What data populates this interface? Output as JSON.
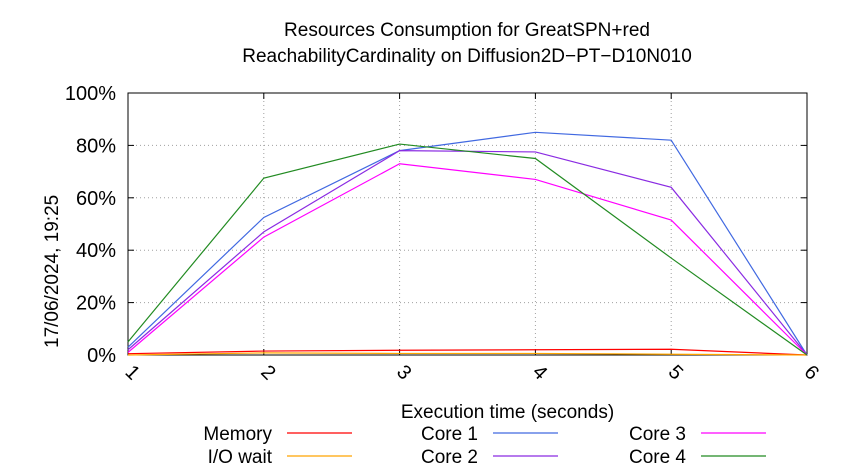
{
  "chart_data": {
    "type": "line",
    "title": "Resources Consumption for GreatSPN+red",
    "subtitle": "ReachabilityCardinality on Diffusion2D−PT−D10N010",
    "xlabel": "Execution time (seconds)",
    "ylabel": "",
    "x": [
      1,
      2,
      3,
      4,
      5,
      6
    ],
    "xlim": [
      1,
      6
    ],
    "ylim": [
      0,
      100
    ],
    "y_ticks": [
      "0%",
      "20%",
      "40%",
      "60%",
      "80%",
      "100%"
    ],
    "x_ticks": [
      "1",
      "2",
      "3",
      "4",
      "5",
      "6"
    ],
    "grid": true,
    "legend_position": "bottom",
    "series": [
      {
        "name": "Memory",
        "color": "#ff0000",
        "values": [
          0.5,
          1.5,
          1.8,
          2.0,
          2.2,
          0
        ]
      },
      {
        "name": "I/O wait",
        "color": "#ffa500",
        "values": [
          0,
          0.8,
          0.6,
          0.6,
          0.3,
          0
        ]
      },
      {
        "name": "Core 1",
        "color": "#4169e1",
        "values": [
          3,
          52.5,
          78,
          85,
          82,
          0
        ]
      },
      {
        "name": "Core 2",
        "color": "#8a2be2",
        "values": [
          2,
          47,
          78,
          77.5,
          64,
          0
        ]
      },
      {
        "name": "Core 3",
        "color": "#ff00ff",
        "values": [
          1,
          45,
          73,
          67,
          51.5,
          0
        ]
      },
      {
        "name": "Core 4",
        "color": "#228b22",
        "values": [
          5,
          67.5,
          80.5,
          75,
          37,
          0
        ]
      }
    ]
  },
  "timestamp": "17/06/2024, 19:25"
}
